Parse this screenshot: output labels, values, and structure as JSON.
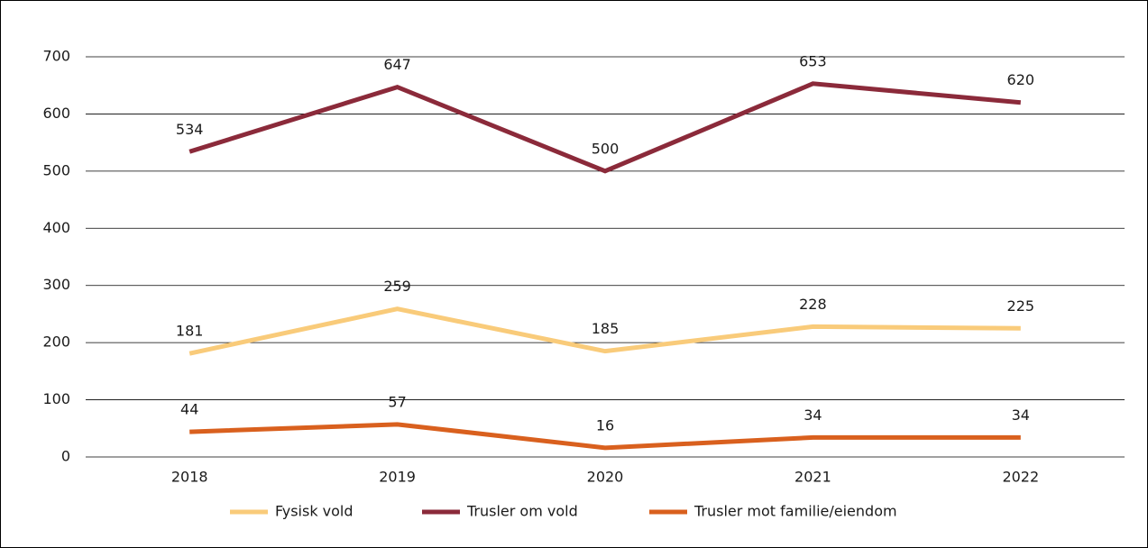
{
  "chart_data": {
    "type": "line",
    "categories": [
      "2018",
      "2019",
      "2020",
      "2021",
      "2022"
    ],
    "series": [
      {
        "name": "Fysisk vold",
        "color": "#f9cb7a",
        "values": [
          181,
          259,
          185,
          228,
          225
        ]
      },
      {
        "name": "Trusler om vold",
        "color": "#8b2a3a",
        "values": [
          534,
          647,
          500,
          653,
          620
        ]
      },
      {
        "name": "Trusler mot familie/eiendom",
        "color": "#d9601e",
        "values": [
          44,
          57,
          16,
          34,
          34
        ]
      }
    ],
    "ylim": [
      0,
      700
    ],
    "yticks": [
      0,
      100,
      200,
      300,
      400,
      500,
      600,
      700
    ],
    "grid": true,
    "legend": "bottom"
  }
}
